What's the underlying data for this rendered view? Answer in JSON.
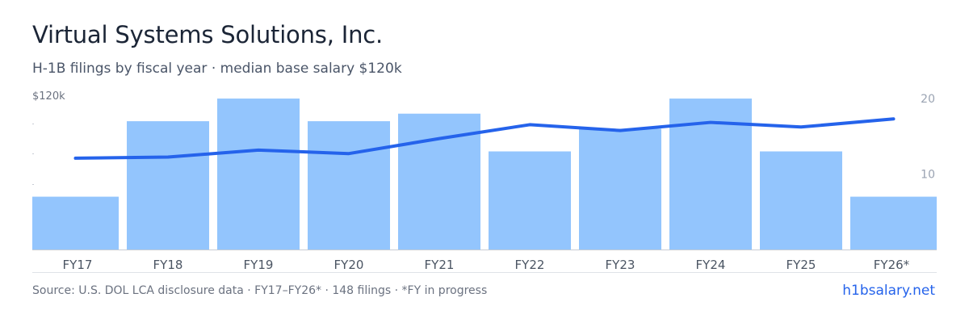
{
  "header": {
    "title": "Virtual Systems Solutions, Inc.",
    "subtitle": "H-1B filings by fiscal year · median base salary $120k"
  },
  "footer": {
    "source": "Source: U.S. DOL LCA disclosure data · FY17–FY26* · 148 filings · *FY in progress",
    "site": "h1bsalary.net"
  },
  "colors": {
    "bar": "#93c5fd",
    "line": "#2563eb",
    "axis": "#c7ccd4",
    "tick_text": "#4b5563",
    "right_tick_text": "#9aa3b2"
  },
  "chart_data": {
    "type": "bar",
    "categories": [
      "FY17",
      "FY18",
      "FY19",
      "FY20",
      "FY21",
      "FY22",
      "FY23",
      "FY24",
      "FY25",
      "FY26*"
    ],
    "series": [
      {
        "type": "bar",
        "axis": "right",
        "values": [
          7,
          17,
          20,
          17,
          18,
          13,
          16,
          20,
          13,
          7
        ]
      },
      {
        "type": "line",
        "axis": "left",
        "values": [
          79,
          80,
          86,
          83,
          96,
          108,
          103,
          110,
          106,
          113
        ]
      }
    ],
    "y_left": {
      "label": "$120k",
      "ticks": [
        120
      ],
      "range": [
        0,
        160
      ]
    },
    "y_right": {
      "ticks": [
        10,
        20
      ],
      "range": [
        0,
        24.5
      ]
    },
    "grid": false,
    "legend": "none"
  }
}
